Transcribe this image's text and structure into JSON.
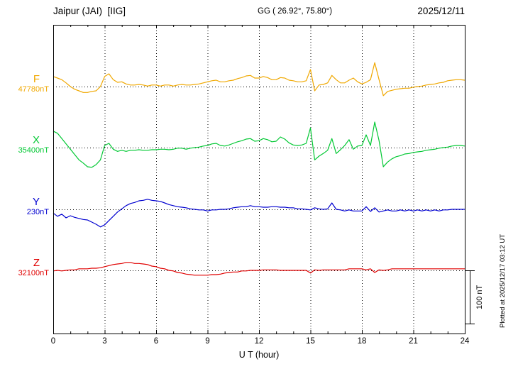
{
  "header": {
    "title": "Jaipur (JAI)  [IIG]",
    "coords": "GG ( 26.92°, 75.80°)",
    "date": "2025/12/11"
  },
  "footer": {
    "plotted_at": "Plotted at 2025/12/17 03:12 UT"
  },
  "chart_data": {
    "type": "line",
    "title": "Jaipur (JAI)  [IIG] magnetogram 2025/12/11",
    "xlabel": "U T (hour)",
    "x_range": [
      0,
      24
    ],
    "x_ticks": [
      0,
      3,
      6,
      9,
      12,
      15,
      18,
      21,
      24
    ],
    "sample_step_hours": 0.25,
    "grid": "dotted vertical lines every 3 hours; dotted horizontal baseline per component",
    "scale_bar": {
      "label": "100 nT",
      "nT": 100
    },
    "series": [
      {
        "name": "F",
        "baseline_label": "47780nT",
        "color": "#f0a800",
        "offsets_nT": [
          19,
          16,
          13,
          7,
          0,
          -5,
          -8,
          -11,
          -11,
          -9,
          -8,
          0,
          19,
          24,
          13,
          8,
          9,
          5,
          3,
          3,
          4,
          3,
          1,
          3,
          3,
          1,
          3,
          3,
          1,
          3,
          4,
          3,
          3,
          4,
          5,
          7,
          9,
          11,
          12,
          9,
          9,
          11,
          12,
          15,
          17,
          20,
          21,
          16,
          16,
          19,
          17,
          13,
          13,
          17,
          16,
          12,
          11,
          9,
          9,
          11,
          32,
          -8,
          3,
          4,
          7,
          21,
          13,
          7,
          7,
          12,
          16,
          9,
          5,
          8,
          13,
          45,
          13,
          -17,
          -9,
          -7,
          -5,
          -4,
          -3,
          -3,
          -1,
          0,
          1,
          3,
          4,
          5,
          7,
          8,
          11,
          12,
          13,
          13,
          12
        ]
      },
      {
        "name": "X",
        "baseline_label": "35400nT",
        "color": "#00c832",
        "offsets_nT": [
          31,
          27,
          17,
          7,
          -3,
          -13,
          -23,
          -29,
          -36,
          -37,
          -32,
          -23,
          4,
          8,
          -3,
          -7,
          -5,
          -7,
          -5,
          -5,
          -4,
          -5,
          -5,
          -4,
          -4,
          -3,
          -3,
          -4,
          -3,
          -1,
          -1,
          -3,
          -1,
          0,
          1,
          3,
          4,
          7,
          8,
          4,
          3,
          5,
          8,
          11,
          13,
          16,
          17,
          12,
          13,
          17,
          15,
          11,
          12,
          20,
          16,
          9,
          5,
          4,
          5,
          8,
          37,
          -23,
          -16,
          -11,
          -5,
          17,
          -11,
          -4,
          4,
          15,
          -3,
          3,
          4,
          24,
          4,
          48,
          13,
          -36,
          -27,
          -21,
          -17,
          -15,
          -12,
          -11,
          -9,
          -8,
          -7,
          -5,
          -4,
          -3,
          -1,
          0,
          1,
          3,
          4,
          4,
          3
        ]
      },
      {
        "name": "Y",
        "baseline_label": "230nT",
        "color": "#0000d0",
        "offsets_nT": [
          -7,
          -13,
          -9,
          -16,
          -12,
          -15,
          -17,
          -19,
          -20,
          -24,
          -28,
          -33,
          -29,
          -21,
          -13,
          -5,
          1,
          7,
          11,
          13,
          16,
          17,
          19,
          17,
          16,
          15,
          12,
          9,
          7,
          5,
          4,
          3,
          1,
          0,
          -1,
          -1,
          -3,
          -1,
          -1,
          0,
          0,
          1,
          3,
          4,
          5,
          5,
          7,
          5,
          5,
          4,
          4,
          5,
          5,
          4,
          4,
          3,
          3,
          1,
          1,
          0,
          -1,
          3,
          1,
          0,
          1,
          12,
          0,
          -1,
          -3,
          -1,
          -3,
          -3,
          -3,
          5,
          -4,
          3,
          -5,
          -3,
          -1,
          -3,
          -3,
          -1,
          -3,
          -1,
          -3,
          -1,
          -3,
          -1,
          -3,
          -1,
          -3,
          -1,
          -1,
          0,
          0,
          0,
          0
        ]
      },
      {
        "name": "Z",
        "baseline_label": "32100nT",
        "color": "#e00000",
        "offsets_nT": [
          -1,
          0,
          -1,
          0,
          1,
          1,
          3,
          3,
          3,
          4,
          4,
          5,
          7,
          9,
          11,
          12,
          13,
          15,
          15,
          13,
          13,
          12,
          11,
          8,
          7,
          4,
          3,
          0,
          -1,
          -4,
          -5,
          -7,
          -8,
          -9,
          -9,
          -9,
          -9,
          -8,
          -8,
          -7,
          -5,
          -4,
          -3,
          -3,
          -1,
          -1,
          0,
          0,
          0,
          1,
          1,
          1,
          1,
          0,
          0,
          0,
          0,
          0,
          0,
          0,
          -5,
          1,
          0,
          1,
          1,
          1,
          1,
          1,
          1,
          3,
          3,
          3,
          3,
          1,
          3,
          -4,
          1,
          0,
          1,
          3,
          3,
          3,
          3,
          3,
          3,
          3,
          3,
          3,
          3,
          3,
          3,
          3,
          3,
          3,
          3,
          3,
          3
        ]
      }
    ]
  }
}
